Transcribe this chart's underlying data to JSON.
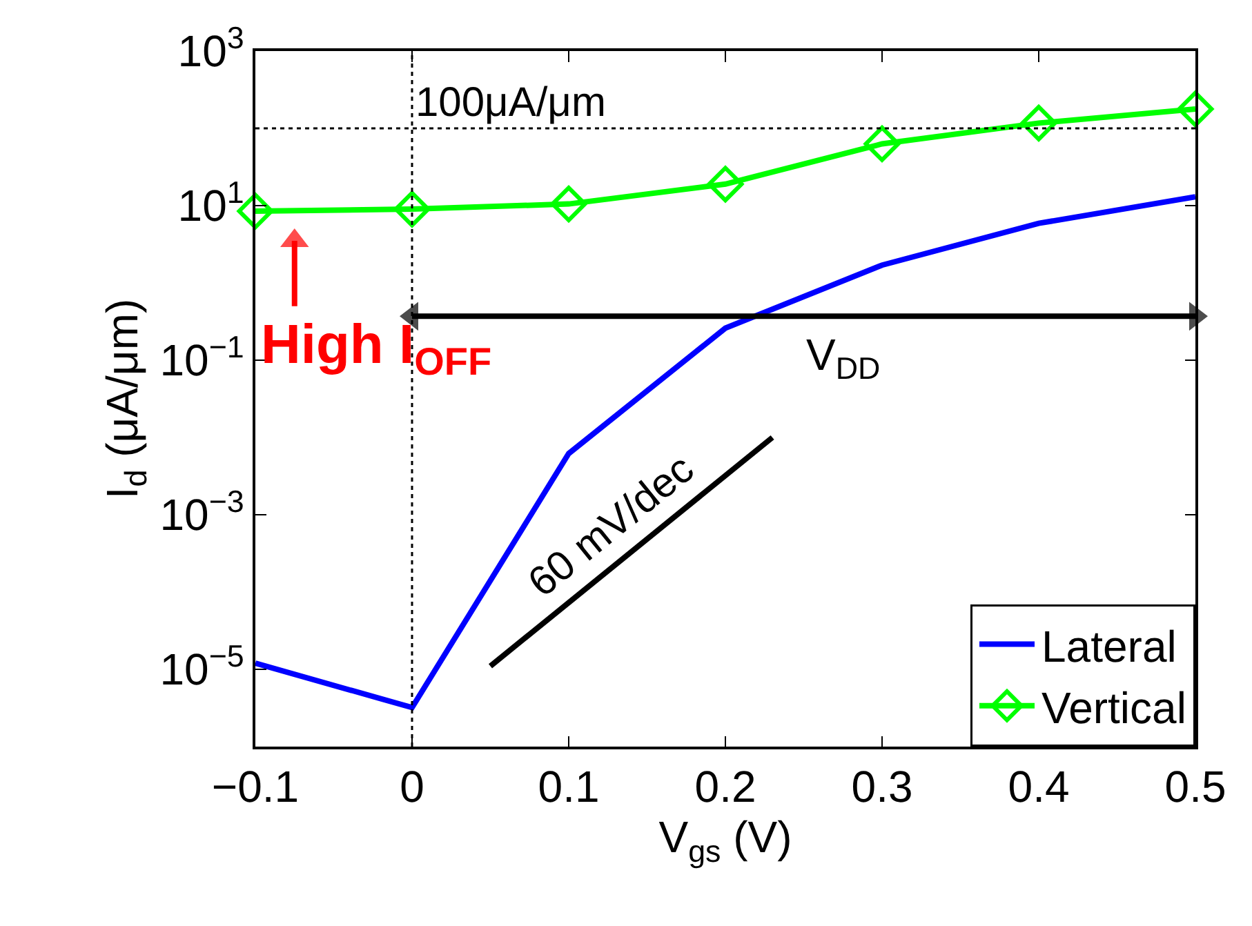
{
  "chart_data": {
    "type": "line",
    "xlabel": "V$_{gs}$ (V)",
    "ylabel": "I$_{d}$ (μA/μm)",
    "x": [
      -0.1,
      0,
      0.1,
      0.2,
      0.3,
      0.4,
      0.5
    ],
    "series": [
      {
        "name": "Lateral",
        "color": "#0000ff",
        "marker": "none",
        "values": [
          1.2e-05,
          3.2e-06,
          0.0062,
          0.26,
          1.7,
          5.9,
          13
        ]
      },
      {
        "name": "Vertical",
        "color": "#00ff00",
        "marker": "diamond",
        "values": [
          8.5,
          9,
          10.5,
          19,
          63,
          117,
          178
        ]
      },
      {
        "type": "line",
        "color": "#000000",
        "marker": "none",
        "x": [
          0.05,
          0.23
        ],
        "values": [
          1.1e-05,
          0.01
        ]
      },
      {
        "type": "line",
        "color": "#000000",
        "marker": "triangle",
        "x": [
          0,
          0.5
        ],
        "values": [
          0.37,
          0.37
        ]
      },
      {
        "type": "line",
        "color": "#ff0000",
        "marker": "triangle",
        "x": [
          -0.075,
          -0.075
        ],
        "values": [
          0.5,
          3.5
        ]
      }
    ],
    "log": "y",
    "xlim": [
      -0.1,
      0.5
    ],
    "ylim": [
      1e-06,
      1000.0
    ],
    "xticks": [
      {
        "value": -0.1,
        "label": "−0.1"
      },
      0,
      0.1,
      0.2,
      0.3,
      0.4,
      0.5
    ],
    "yticks": [
      {
        "value": 1e-05,
        "label": "10$^{−5}$"
      },
      {
        "value": 0.001,
        "label": "10$^{−3}$"
      },
      {
        "value": 0.1,
        "label": "10$^{−1}$"
      },
      {
        "value": 10,
        "label": "10$^{1}$"
      },
      {
        "value": 1000,
        "label": "10$^{3}$"
      }
    ],
    "ref_lines": [
      {
        "axis": "y",
        "value": 100,
        "label": "100μA/μm",
        "line_style": "dotted",
        "color": "#000000"
      },
      {
        "axis": "x",
        "value": 0,
        "line_style": "dotted",
        "color": "#000000"
      }
    ],
    "annotations": [
      {
        "text": "V$_{DD}$",
        "x": 0.25,
        "y": 0.37
      },
      {
        "text": "High I$_{OFF}$",
        "x": -0.075,
        "y": 0.5
      },
      "60 mV/dec"
    ],
    "legend": "bottom right",
    "line_style": "solid"
  }
}
